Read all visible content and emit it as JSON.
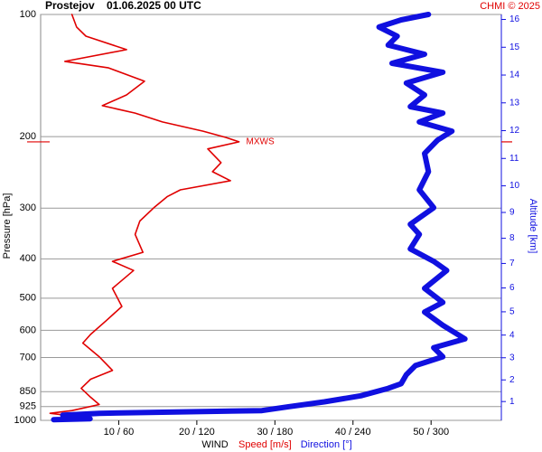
{
  "chart_data": {
    "type": "line",
    "title": "Prostejov",
    "subtitle": "01.06.2025 00 UTC",
    "credit": "CHMI © 2025",
    "y_label": "Pressure [hPa]",
    "y2_label": "Altitude [km]",
    "x_label": "WIND",
    "log_y": true,
    "grid": true,
    "ylim": [
      100,
      1000
    ],
    "yticks": [
      100,
      200,
      300,
      400,
      500,
      600,
      700,
      850,
      925,
      1000
    ],
    "xlim": [
      0,
      59
    ],
    "x2lim": [
      0,
      354
    ],
    "xticks": [
      {
        "value": 10,
        "label": "10 / 60"
      },
      {
        "value": 20,
        "label": "20 / 120"
      },
      {
        "value": 30,
        "label": "30 / 180"
      },
      {
        "value": 40,
        "label": "40 / 240"
      },
      {
        "value": 50,
        "label": "50 / 300"
      }
    ],
    "y2ticks": [
      1,
      2,
      3,
      4,
      5,
      6,
      7,
      8,
      9,
      10,
      11,
      12,
      13,
      14,
      15,
      16
    ],
    "y2color": "#1010e0",
    "series": [
      {
        "name": "Speed [m/s]",
        "color": "#e00000",
        "axis": "x",
        "y": [
          100,
          107.4,
          113.1,
          122.1,
          130.5,
          135.4,
          146.1,
          157.8,
          167.8,
          175,
          184,
          193.9,
          200.9,
          206,
          214.4,
          231.7,
          243.9,
          256.8,
          270.4,
          281.2,
          299.3,
          322.8,
          348.2,
          385.5,
          405.8,
          427.2,
          473,
          524,
          568,
          614,
          645,
          697,
          753,
          792,
          834,
          877,
          914,
          946,
          961,
          981,
          996
        ],
        "values": [
          4.0,
          4.6,
          5.8,
          11,
          3.1,
          8.7,
          13.3,
          11,
          7.9,
          12.1,
          15.6,
          20.8,
          23.7,
          25.4,
          21.4,
          23.1,
          22,
          24.3,
          17.9,
          16.2,
          14.5,
          12.7,
          12.1,
          13.1,
          9.2,
          11.9,
          9.2,
          10.4,
          8.4,
          6.4,
          5.4,
          7.5,
          9.2,
          6.4,
          5.2,
          6.4,
          7.5,
          4.0,
          1.2,
          5.2,
          2.9
        ]
      },
      {
        "name": "Direction [°]",
        "color": "#1010e0",
        "axis": "x2",
        "y": [
          100,
          103.1,
          107.4,
          113.1,
          119,
          125.3,
          131.9,
          138.8,
          147.6,
          157.8,
          168.7,
          175,
          184,
          193.9,
          204,
          220.1,
          243.9,
          270.4,
          299.3,
          328.8,
          348.2,
          378,
          405.8,
          427.2,
          473,
          512,
          541,
          583,
          630,
          662,
          697,
          733,
          772,
          812,
          834,
          870,
          900,
          925,
          946,
          961,
          971,
          991,
          996
        ],
        "values": [
          298,
          277,
          260,
          274,
          267,
          295,
          270,
          309,
          281,
          295,
          284,
          309,
          291,
          316,
          305,
          295,
          298,
          291,
          302,
          284,
          291,
          284,
          302,
          312,
          295,
          309,
          295,
          309,
          326,
          302,
          309,
          288,
          281,
          277,
          267,
          246,
          218,
          191,
          170,
          45,
          17,
          38,
          10
        ]
      }
    ],
    "annotations": [
      {
        "text": "MXWS",
        "x": 25.4,
        "y": 206
      }
    ]
  }
}
